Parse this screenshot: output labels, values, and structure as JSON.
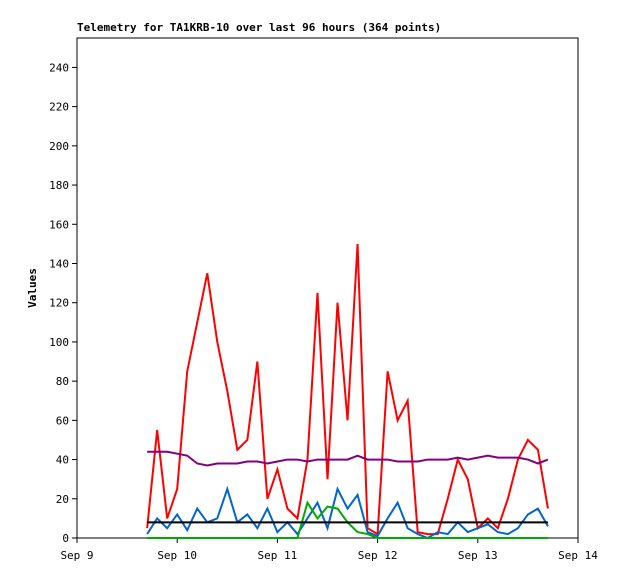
{
  "chart_data": {
    "type": "line",
    "title": "Telemetry for TA1KRB-10 over last 96 hours (364 points)",
    "y_label": "Values",
    "x": [
      9.7,
      9.8,
      9.9,
      10.0,
      10.1,
      10.2,
      10.3,
      10.4,
      10.5,
      10.6,
      10.7,
      10.8,
      10.9,
      11.0,
      11.1,
      11.2,
      11.3,
      11.4,
      11.5,
      11.6,
      11.7,
      11.8,
      11.9,
      12.0,
      12.1,
      12.2,
      12.3,
      12.4,
      12.5,
      12.6,
      12.7,
      12.8,
      12.9,
      13.0,
      13.1,
      13.2,
      13.3,
      13.4,
      13.5,
      13.6,
      13.7
    ],
    "series": [
      {
        "color": "#ff0000",
        "values": [
          5,
          55,
          10,
          25,
          85,
          110,
          135,
          100,
          75,
          45,
          50,
          90,
          20,
          35,
          15,
          10,
          40,
          125,
          30,
          120,
          60,
          150,
          5,
          2,
          85,
          60,
          70,
          3,
          2,
          2,
          20,
          40,
          30,
          5,
          10,
          5,
          20,
          40,
          50,
          45,
          15
        ]
      },
      {
        "color": "#800080",
        "values": [
          44,
          44,
          44,
          43,
          42,
          38,
          37,
          38,
          38,
          38,
          39,
          39,
          38,
          39,
          40,
          40,
          39,
          40,
          40,
          40,
          40,
          42,
          40,
          40,
          40,
          39,
          39,
          39,
          40,
          40,
          40,
          41,
          40,
          41,
          42,
          41,
          41,
          41,
          40,
          38,
          40
        ]
      },
      {
        "color": "#0066cc",
        "values": [
          2,
          10,
          5,
          12,
          4,
          15,
          8,
          10,
          25,
          8,
          12,
          5,
          15,
          3,
          8,
          2,
          10,
          18,
          5,
          25,
          15,
          22,
          3,
          1,
          10,
          18,
          5,
          2,
          0,
          3,
          2,
          8,
          3,
          5,
          7,
          3,
          2,
          5,
          12,
          15,
          6
        ]
      },
      {
        "color": "#00aa00",
        "values": [
          0,
          0,
          0,
          0,
          0,
          0,
          0,
          0,
          0,
          0,
          0,
          0,
          0,
          0,
          0,
          0,
          18,
          10,
          16,
          15,
          8,
          3,
          2,
          0,
          0,
          0,
          0,
          0,
          0,
          0,
          0,
          0,
          0,
          0,
          0,
          0,
          0,
          0,
          0,
          0,
          0
        ]
      },
      {
        "color": "#000000",
        "values": [
          8,
          8,
          8,
          8,
          8,
          8,
          8,
          8,
          8,
          8,
          8,
          8,
          8,
          8,
          8,
          8,
          8,
          8,
          8,
          8,
          8,
          8,
          8,
          8,
          8,
          8,
          8,
          8,
          8,
          8,
          8,
          8,
          8,
          8,
          8,
          8,
          8,
          8,
          8,
          8,
          8
        ]
      }
    ],
    "xlim": [
      9,
      14
    ],
    "xticks": [
      {
        "value": 9,
        "label": "Sep 9"
      },
      {
        "value": 10,
        "label": "Sep 10"
      },
      {
        "value": 11,
        "label": "Sep 11"
      },
      {
        "value": 12,
        "label": "Sep 12"
      },
      {
        "value": 13,
        "label": "Sep 13"
      },
      {
        "value": 14,
        "label": "Sep 14"
      }
    ],
    "ylim": [
      0,
      255
    ],
    "yticks": [
      0,
      20,
      40,
      60,
      80,
      100,
      120,
      140,
      160,
      180,
      200,
      220,
      240
    ],
    "grid": false
  }
}
